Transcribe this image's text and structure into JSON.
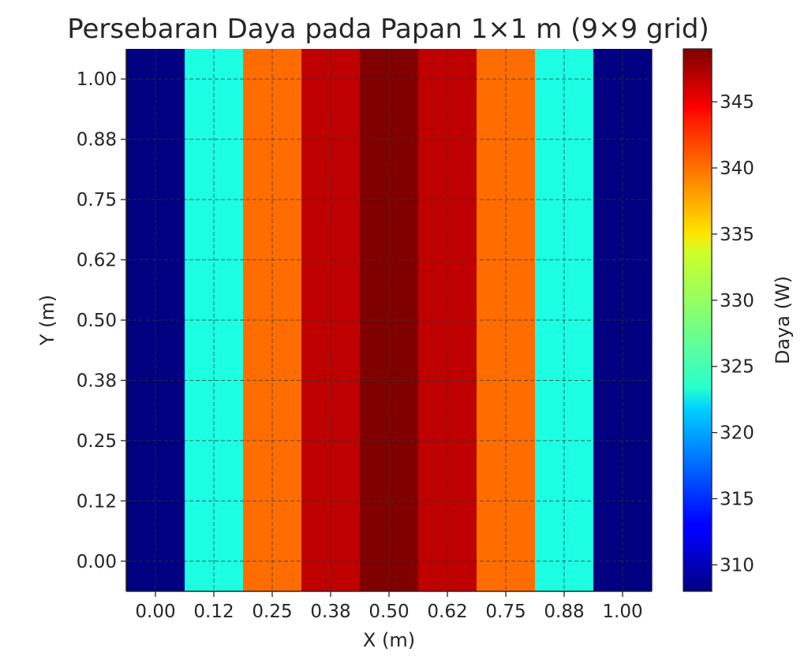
{
  "chart_data": {
    "type": "heatmap",
    "title": "Persebaran Daya pada Papan 1×1 m (9×9 grid)",
    "xlabel": "X (m)",
    "ylabel": "Y (m)",
    "x_ticks": [
      "0.00",
      "0.12",
      "0.25",
      "0.38",
      "0.50",
      "0.62",
      "0.75",
      "0.88",
      "1.00"
    ],
    "y_ticks": [
      "0.00",
      "0.12",
      "0.25",
      "0.38",
      "0.50",
      "0.62",
      "0.75",
      "0.88",
      "1.00"
    ],
    "x": [
      0,
      0.125,
      0.25,
      0.375,
      0.5,
      0.625,
      0.75,
      0.875,
      1.0
    ],
    "y": [
      0,
      0.125,
      0.25,
      0.375,
      0.5,
      0.625,
      0.75,
      0.875,
      1.0
    ],
    "column_values": [
      308,
      324.5,
      339.5,
      346.5,
      349,
      346.5,
      339.5,
      324.5,
      308
    ],
    "grid": true,
    "colormap": "jet",
    "colorbar": {
      "label": "Daya (W)",
      "range": [
        308,
        349
      ],
      "ticks": [
        "310",
        "315",
        "320",
        "325",
        "330",
        "335",
        "340",
        "345"
      ]
    }
  }
}
